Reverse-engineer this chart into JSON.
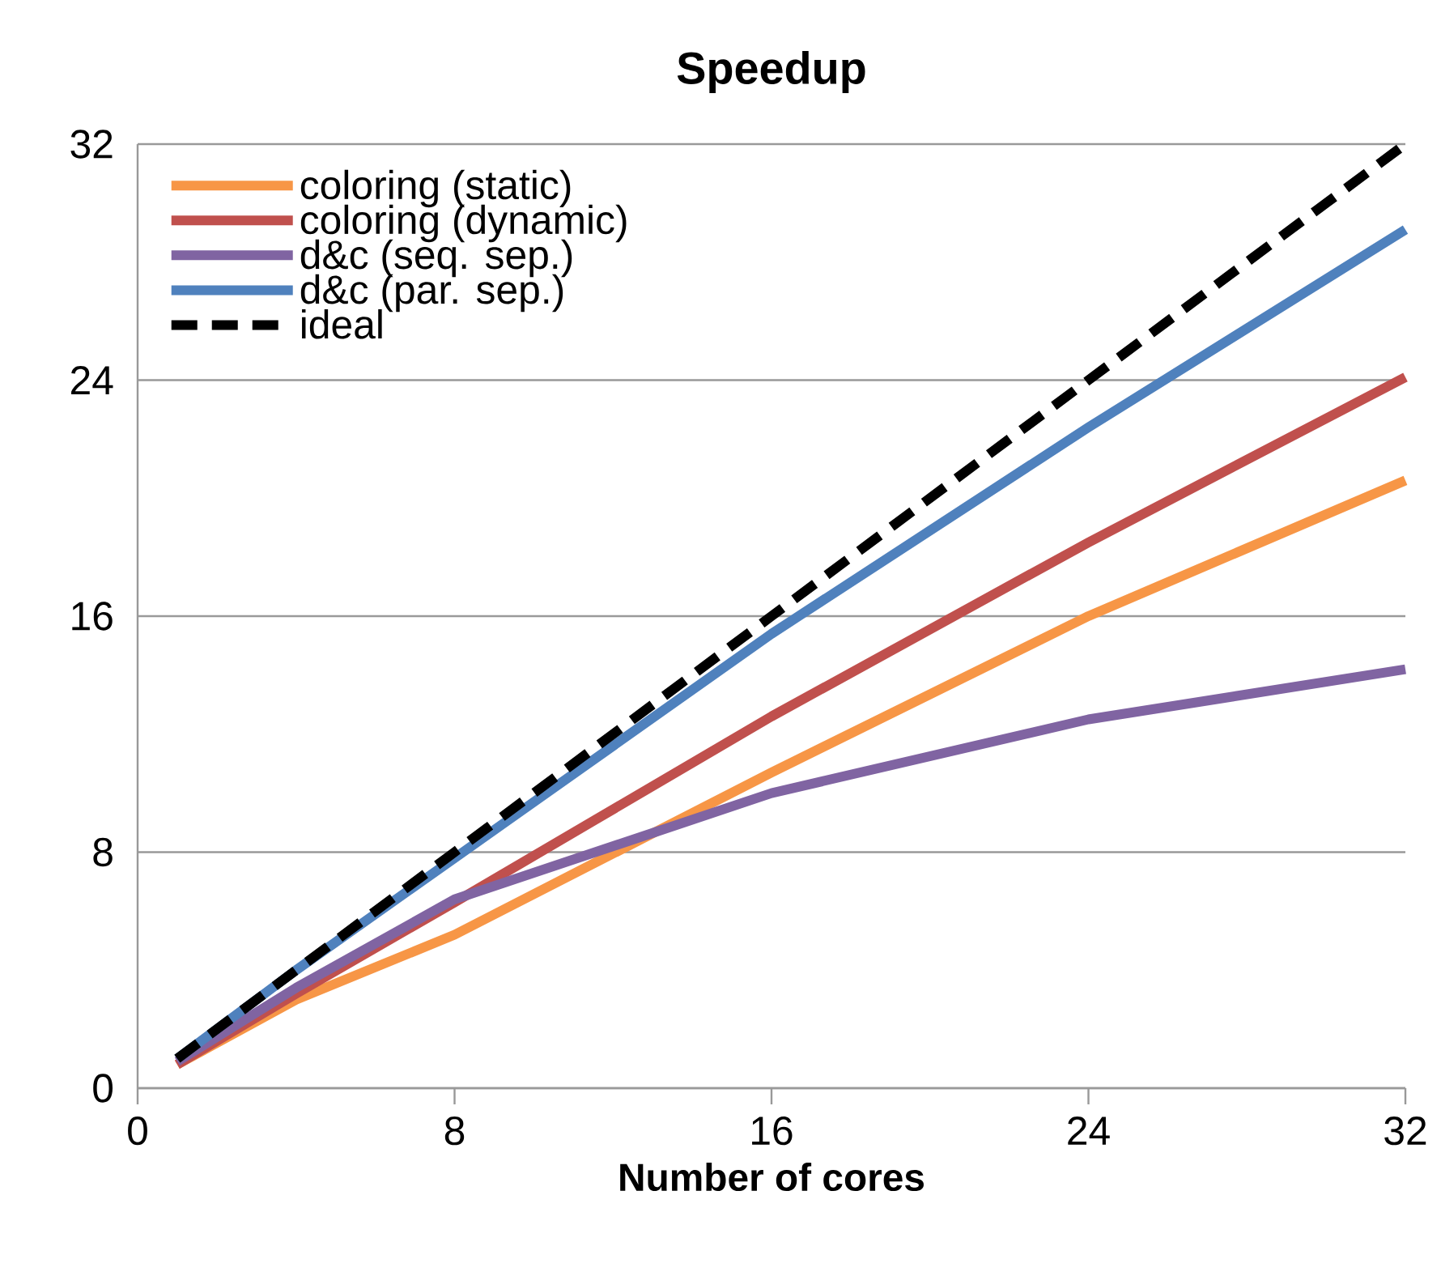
{
  "chart_data": {
    "type": "line",
    "title": "Speedup",
    "xlabel": "Number of cores",
    "x": [
      1,
      4,
      8,
      16,
      24,
      32
    ],
    "series": [
      {
        "name": "coloring (static)",
        "color": "#f79646",
        "values": [
          0.8,
          3.0,
          5.2,
          10.7,
          16.0,
          20.6
        ]
      },
      {
        "name": "coloring (dynamic)",
        "color": "#c0504d",
        "values": [
          0.8,
          3.2,
          6.3,
          12.6,
          18.5,
          24.1
        ]
      },
      {
        "name": "d&c (seq. sep.)",
        "color": "#8064a2",
        "values": [
          0.9,
          3.4,
          6.4,
          10.0,
          12.5,
          14.2
        ]
      },
      {
        "name": "d&c (par. sep.)",
        "color": "#4f81bd",
        "values": [
          1.0,
          4.0,
          7.8,
          15.4,
          22.4,
          29.1
        ]
      },
      {
        "name": "ideal",
        "color": "#000000",
        "line_style": "dashed",
        "values": [
          1,
          4,
          8,
          16,
          24,
          32
        ]
      }
    ],
    "xlim": [
      0,
      32
    ],
    "ylim": [
      0,
      32
    ],
    "xticks": [
      0,
      8,
      16,
      24,
      32
    ],
    "yticks": [
      0,
      8,
      16,
      24,
      32
    ],
    "grid": "y",
    "legend": "top left"
  }
}
